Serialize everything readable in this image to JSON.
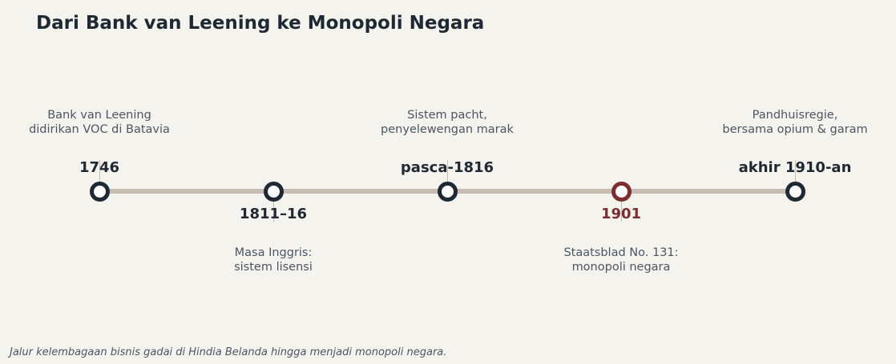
{
  "title": "Dari Bank van Leening ke Monopoli Negara",
  "caption": "Jalur kelembagaan bisnis gadai di Hindia Belanda hingga menjadi monopoli negara.",
  "colors": {
    "background": "#f5f3ed",
    "line": "#c8bcb2",
    "marker": "#1f2933",
    "accent": "#7b2d2f",
    "text": "#4b5563"
  },
  "events": [
    {
      "year": "1746",
      "description_lines": [
        "Bank van Leening",
        "didirikan VOC di Batavia"
      ],
      "label_side": "above",
      "highlight": false
    },
    {
      "year": "1811–16",
      "description_lines": [
        "Masa Inggris:",
        "sistem lisensi"
      ],
      "label_side": "below",
      "highlight": false
    },
    {
      "year": "pasca-1816",
      "description_lines": [
        "Sistem pacht,",
        "penyelewengan marak"
      ],
      "label_side": "above",
      "highlight": false
    },
    {
      "year": "1901",
      "description_lines": [
        "Staatsblad No. 131:",
        "monopoli negara"
      ],
      "label_side": "below",
      "highlight": true
    },
    {
      "year": "akhir 1910-an",
      "description_lines": [
        "Pandhuisregie,",
        "bersama opium & garam"
      ],
      "label_side": "above",
      "highlight": false
    }
  ]
}
